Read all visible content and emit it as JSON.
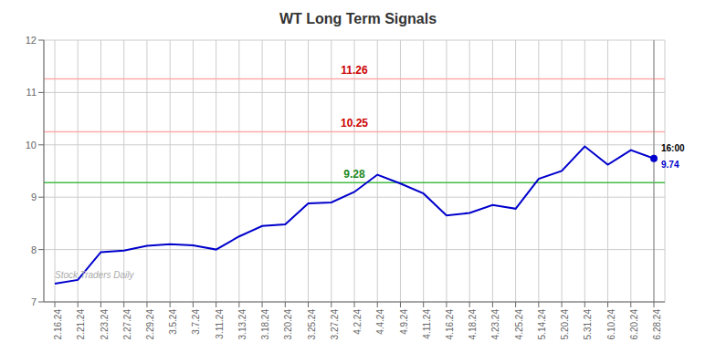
{
  "chart_data": {
    "type": "line",
    "title": "WT Long Term Signals",
    "categories": [
      "2.16.24",
      "2.21.24",
      "2.23.24",
      "2.27.24",
      "2.29.24",
      "3.5.24",
      "3.7.24",
      "3.11.24",
      "3.13.24",
      "3.18.24",
      "3.20.24",
      "3.25.24",
      "3.27.24",
      "4.2.24",
      "4.4.24",
      "4.9.24",
      "4.11.24",
      "4.16.24",
      "4.18.24",
      "4.23.24",
      "4.25.24",
      "5.14.24",
      "5.20.24",
      "5.31.24",
      "6.10.24",
      "6.20.24",
      "6.28.24"
    ],
    "values": [
      7.35,
      7.42,
      7.95,
      7.98,
      8.07,
      8.1,
      8.08,
      8.0,
      8.25,
      8.45,
      8.48,
      8.88,
      8.9,
      9.1,
      9.43,
      9.26,
      9.07,
      8.65,
      8.7,
      8.85,
      8.78,
      9.35,
      9.5,
      9.97,
      9.62,
      9.9,
      9.74
    ],
    "color": "#0000cc",
    "ylim": [
      7,
      12
    ],
    "yticks": [
      7,
      8,
      9,
      10,
      11,
      12
    ],
    "grid": true,
    "reference_lines": [
      {
        "value": 10.25,
        "label": "10.25",
        "color": "#ffaaaa",
        "label_color": "#cc0000"
      },
      {
        "value": 11.26,
        "label": "11.26",
        "color": "#ffaaaa",
        "label_color": "#cc0000"
      },
      {
        "value": 9.28,
        "label": "9.28",
        "color": "#44bb44",
        "label_color": "#228822"
      }
    ],
    "last_point": {
      "value": 9.74,
      "marker": "circle",
      "vline_color": "#888888",
      "labels": [
        {
          "text": "16:00",
          "color": "#000000"
        },
        {
          "text": "9.74",
          "color": "#0000cc"
        }
      ]
    },
    "annotations": [
      {
        "text": "Stock Traders Daily",
        "x": "2.16.24",
        "y": 7.45,
        "color": "#aaaaaa"
      }
    ]
  }
}
